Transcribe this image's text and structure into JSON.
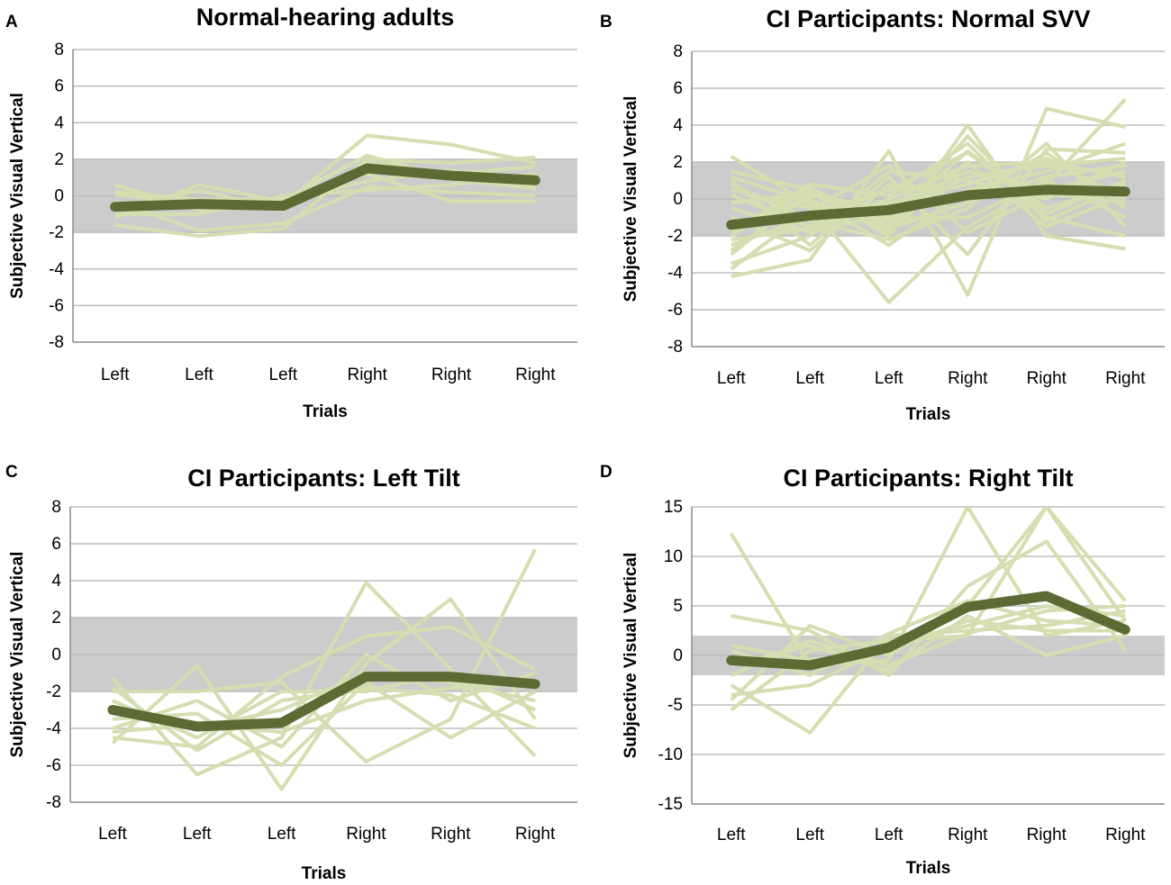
{
  "figure": {
    "background": "#ffffff"
  },
  "colors": {
    "band": "#cccccc",
    "grid": "#bdbdbd",
    "axis": "#8c8c8c",
    "individual": "#d5deb0",
    "mean": "#5c6b34"
  },
  "chart_data": [
    {
      "panel": "A",
      "type": "line",
      "title": "Normal-hearing adults",
      "xlabel": "Trials",
      "ylabel": "Subjective Visual Vertical",
      "categories": [
        "Left",
        "Left",
        "Left",
        "Right",
        "Right",
        "Right"
      ],
      "ylim": [
        -8,
        8
      ],
      "yticks": [
        -8,
        -6,
        -4,
        -2,
        0,
        2,
        4,
        6,
        8
      ],
      "band": [
        -2,
        2
      ],
      "mean": [
        -0.6,
        -0.45,
        -0.55,
        1.5,
        1.1,
        0.85
      ],
      "individuals": [
        [
          0.6,
          -0.8,
          -0.5,
          3.3,
          2.8,
          1.8
        ],
        [
          -1.6,
          -2.2,
          -1.8,
          2.0,
          1.8,
          2.1
        ],
        [
          -1.2,
          0.6,
          -0.3,
          1.2,
          -0.3,
          -0.3
        ],
        [
          0.2,
          -0.2,
          -0.2,
          0.8,
          1.4,
          0.5
        ],
        [
          -1.0,
          -1.0,
          0.0,
          0.3,
          0.6,
          1.2
        ],
        [
          -0.3,
          -1.9,
          -1.5,
          0.5,
          0.2,
          0.0
        ],
        [
          -0.8,
          0.3,
          -0.8,
          1.8,
          1.2,
          1.6
        ],
        [
          0.1,
          -0.5,
          -0.2,
          2.2,
          0.9,
          0.4
        ]
      ]
    },
    {
      "panel": "B",
      "type": "line",
      "title": "CI Participants: Normal SVV",
      "xlabel": "Trials",
      "ylabel": "Subjective Visual Vertical",
      "categories": [
        "Left",
        "Left",
        "Left",
        "Right",
        "Right",
        "Right"
      ],
      "ylim": [
        -8,
        8
      ],
      "yticks": [
        -8,
        -6,
        -4,
        -2,
        0,
        2,
        4,
        6,
        8
      ],
      "band": [
        -2,
        2
      ],
      "mean": [
        -1.4,
        -0.9,
        -0.6,
        0.2,
        0.5,
        0.4
      ],
      "individuals": [
        [
          2.3,
          -0.3,
          -5.6,
          -1.5,
          0.8,
          5.4
        ],
        [
          -4.2,
          -3.3,
          2.6,
          -5.2,
          4.9,
          3.9
        ],
        [
          -3.0,
          0.4,
          -2.0,
          4.0,
          -2.0,
          -2.7
        ],
        [
          1.0,
          -2.5,
          1.2,
          -3.0,
          2.7,
          2.5
        ],
        [
          -2.0,
          0.6,
          -1.5,
          3.4,
          -1.0,
          -2.0
        ],
        [
          0.2,
          -1.5,
          0.0,
          1.8,
          2.0,
          1.2
        ],
        [
          -1.5,
          0.0,
          -2.5,
          0.5,
          1.5,
          3.0
        ],
        [
          -2.5,
          -1.0,
          0.5,
          2.5,
          -0.5,
          0.8
        ],
        [
          0.5,
          -0.5,
          -1.0,
          -1.0,
          1.0,
          -1.0
        ],
        [
          -3.5,
          -2.0,
          1.5,
          1.0,
          0.0,
          2.0
        ],
        [
          1.5,
          0.5,
          -1.8,
          2.0,
          -1.5,
          0.2
        ],
        [
          -1.0,
          -2.8,
          0.8,
          0.0,
          2.5,
          -0.5
        ],
        [
          -2.8,
          0.2,
          -0.5,
          1.5,
          0.5,
          1.5
        ],
        [
          0.8,
          -1.2,
          -2.2,
          -0.5,
          3.0,
          -1.5
        ],
        [
          -1.8,
          0.8,
          0.2,
          3.0,
          -1.2,
          0.8
        ],
        [
          -0.5,
          -1.8,
          -0.8,
          1.2,
          1.8,
          2.2
        ],
        [
          -3.8,
          -0.6,
          1.8,
          -1.8,
          0.3,
          -0.2
        ],
        [
          1.2,
          -0.2,
          -1.2,
          2.6,
          -0.8,
          1.0
        ],
        [
          -2.2,
          -1.6,
          -0.2,
          0.8,
          2.2,
          0.0
        ],
        [
          -0.2,
          0.3,
          -1.6,
          -0.2,
          1.2,
          1.8
        ]
      ]
    },
    {
      "panel": "C",
      "type": "line",
      "title": "CI Participants: Left Tilt",
      "xlabel": "Trials",
      "ylabel": "Subjective Visual Vertical",
      "categories": [
        "Left",
        "Left",
        "Left",
        "Right",
        "Right",
        "Right"
      ],
      "ylim": [
        -8,
        8
      ],
      "yticks": [
        -8,
        -6,
        -4,
        -2,
        0,
        2,
        4,
        6,
        8
      ],
      "band": [
        -2,
        2
      ],
      "mean": [
        -3.0,
        -3.9,
        -3.7,
        -1.2,
        -1.2,
        -1.6
      ],
      "individuals": [
        [
          -1.3,
          -6.5,
          -4.5,
          3.9,
          -0.8,
          -5.5
        ],
        [
          -4.8,
          -0.6,
          -7.3,
          -0.5,
          3.0,
          -3.5
        ],
        [
          -2.0,
          -2.0,
          -1.5,
          -5.8,
          -3.5,
          5.7
        ],
        [
          -4.5,
          -5.0,
          -1.2,
          1.0,
          1.5,
          -0.8
        ],
        [
          -3.5,
          -3.2,
          -6.0,
          -1.5,
          -4.5,
          -2.0
        ],
        [
          -2.5,
          -4.5,
          -2.0,
          -2.0,
          -1.0,
          -3.0
        ],
        [
          -4.0,
          -2.5,
          -5.0,
          0.0,
          -2.5,
          -1.0
        ],
        [
          -3.0,
          -4.0,
          -3.0,
          -1.0,
          -1.5,
          -2.5
        ],
        [
          -1.8,
          -5.2,
          -2.5,
          -1.8,
          -2.2,
          -4.0
        ],
        [
          -4.2,
          -3.8,
          -4.2,
          -2.5,
          -1.8,
          -1.5
        ]
      ]
    },
    {
      "panel": "D",
      "type": "line",
      "title": "CI Participants: Right Tilt",
      "xlabel": "Trials",
      "ylabel": "Subjective Visual Vertical",
      "categories": [
        "Left",
        "Left",
        "Left",
        "Right",
        "Right",
        "Right"
      ],
      "ylim": [
        -15,
        15
      ],
      "yticks": [
        -15,
        -10,
        -5,
        0,
        5,
        10,
        15
      ],
      "band": [
        -2,
        2
      ],
      "mean": [
        -0.5,
        -1.0,
        0.8,
        4.9,
        6.0,
        2.6
      ],
      "individuals": [
        [
          12.3,
          -1.0,
          -0.5,
          15.0,
          2.0,
          3.5
        ],
        [
          4.0,
          2.5,
          -2.0,
          7.0,
          11.5,
          0.5
        ],
        [
          -5.5,
          0.5,
          1.5,
          2.0,
          15.0,
          5.5
        ],
        [
          -3.0,
          -7.8,
          2.0,
          2.5,
          3.0,
          4.5
        ],
        [
          -4.5,
          3.0,
          0.0,
          5.0,
          15.0,
          3.5
        ],
        [
          -1.0,
          1.0,
          -1.5,
          4.0,
          0.0,
          2.0
        ],
        [
          -4.0,
          -3.0,
          1.0,
          3.0,
          5.0,
          4.0
        ],
        [
          0.5,
          -2.0,
          2.2,
          5.5,
          3.5,
          3.0
        ],
        [
          -2.0,
          1.5,
          -1.0,
          2.2,
          4.5,
          5.0
        ],
        [
          1.0,
          -0.5,
          0.5,
          3.5,
          2.5,
          2.5
        ]
      ]
    }
  ]
}
